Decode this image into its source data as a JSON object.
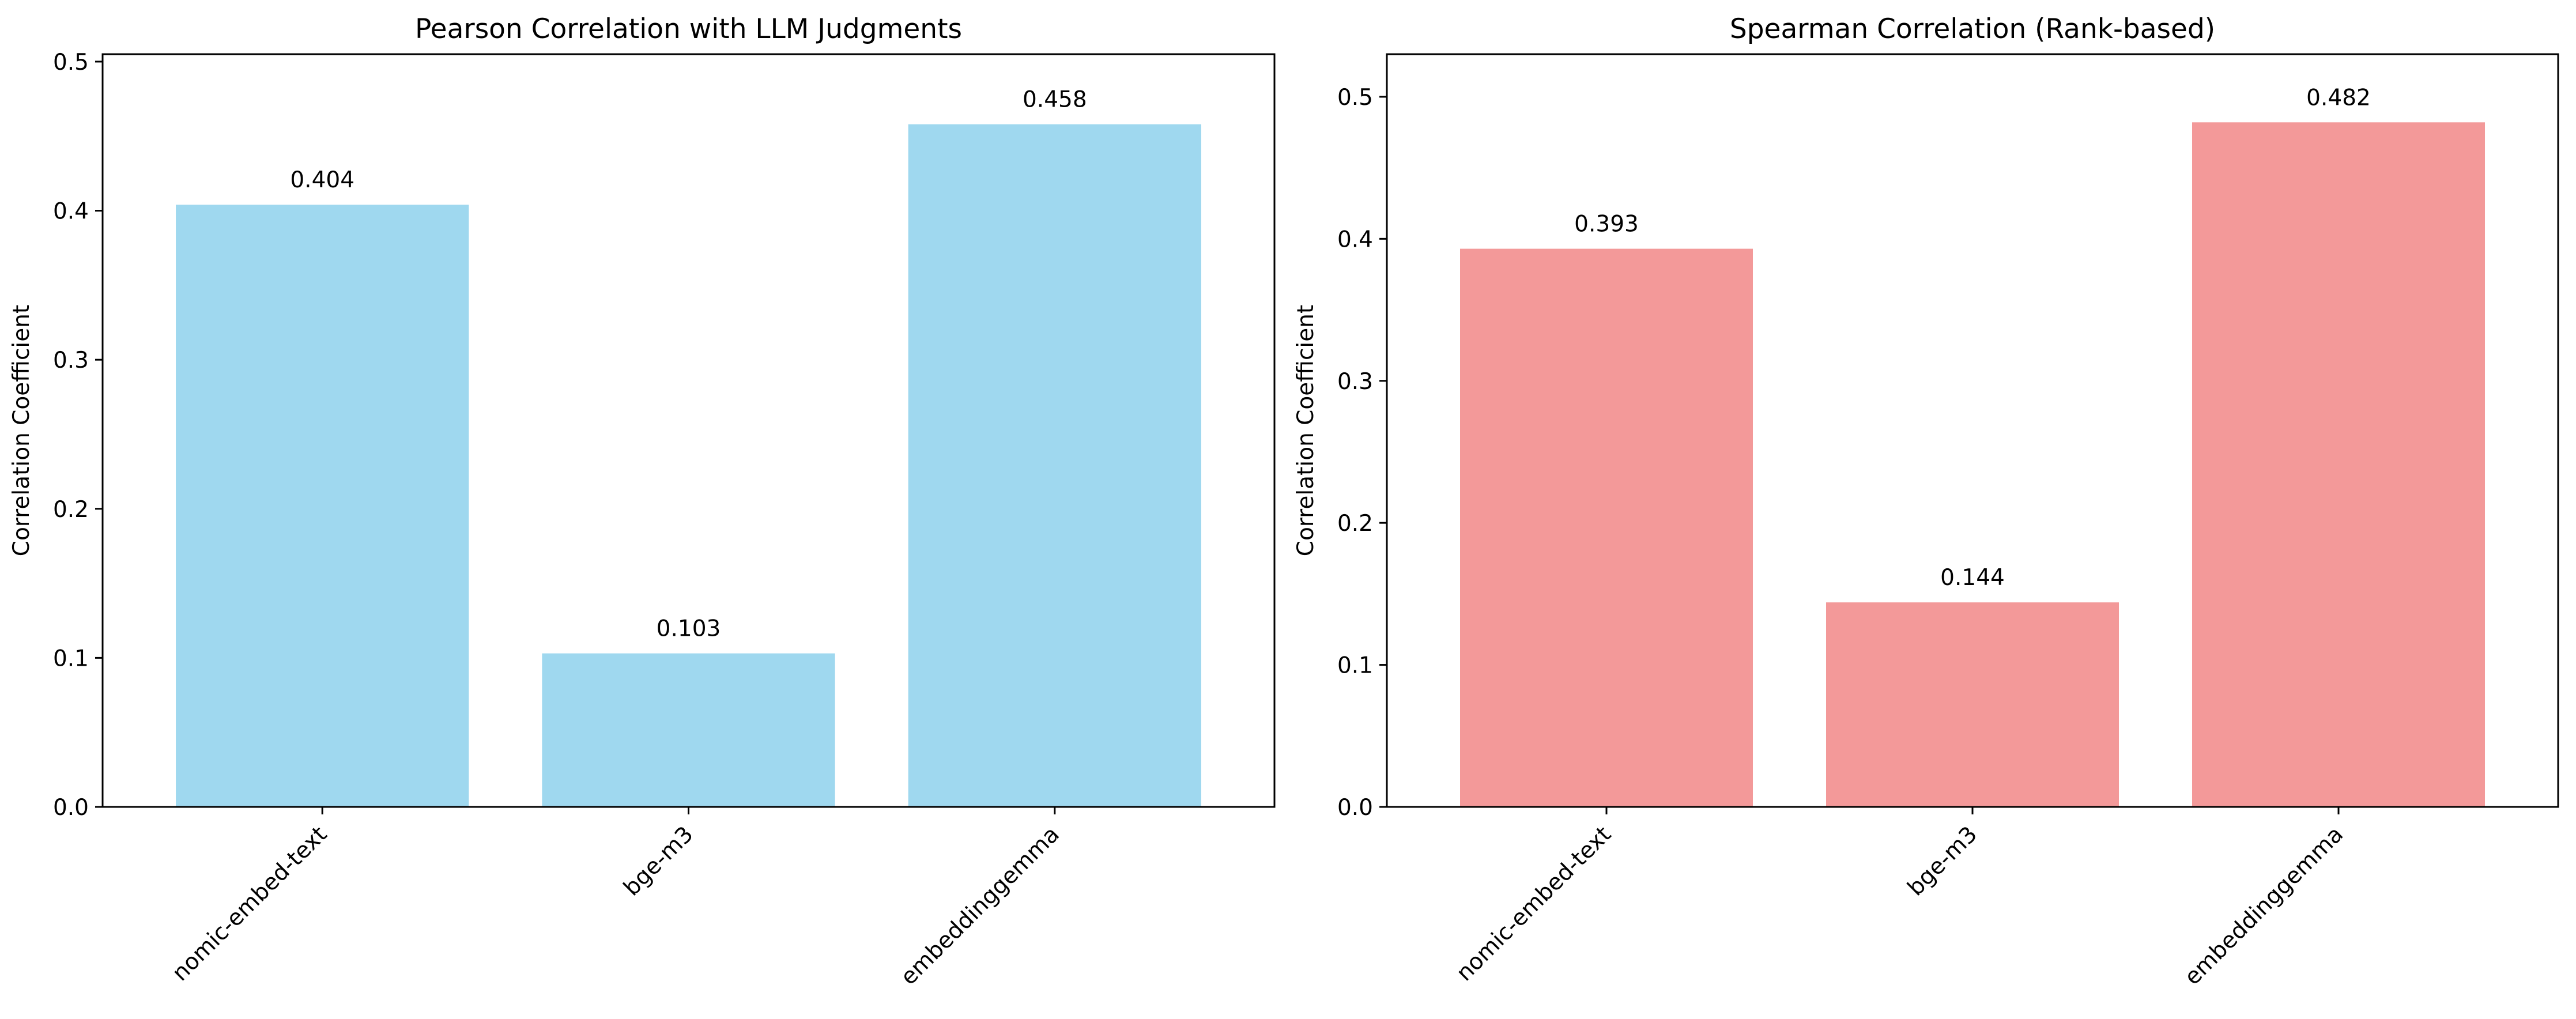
{
  "chart_data": [
    {
      "type": "bar",
      "title": "Pearson Correlation with LLM Judgments",
      "xlabel": "",
      "ylabel": "Correlation Coefficient",
      "categories": [
        "nomic-embed-text",
        "bge-m3",
        "embeddinggemma"
      ],
      "values": [
        0.404,
        0.103,
        0.458
      ],
      "data_labels": [
        "0.404",
        "0.103",
        "0.458"
      ],
      "ylim": [
        0,
        0.505
      ],
      "yticks": [
        0.0,
        0.1,
        0.2,
        0.3,
        0.4,
        0.5
      ],
      "ytick_labels": [
        "0.0",
        "0.1",
        "0.2",
        "0.3",
        "0.4",
        "0.5"
      ],
      "color": "#87CEEB",
      "grid": false,
      "legend": "none"
    },
    {
      "type": "bar",
      "title": "Spearman Correlation (Rank-based)",
      "xlabel": "",
      "ylabel": "Correlation Coefficient",
      "categories": [
        "nomic-embed-text",
        "bge-m3",
        "embeddinggemma"
      ],
      "values": [
        0.393,
        0.144,
        0.482
      ],
      "data_labels": [
        "0.393",
        "0.144",
        "0.482"
      ],
      "ylim": [
        0,
        0.53
      ],
      "yticks": [
        0.0,
        0.1,
        0.2,
        0.3,
        0.4,
        0.5
      ],
      "ytick_labels": [
        "0.0",
        "0.1",
        "0.2",
        "0.3",
        "0.4",
        "0.5"
      ],
      "color": "#F08080",
      "grid": false,
      "legend": "none"
    }
  ]
}
